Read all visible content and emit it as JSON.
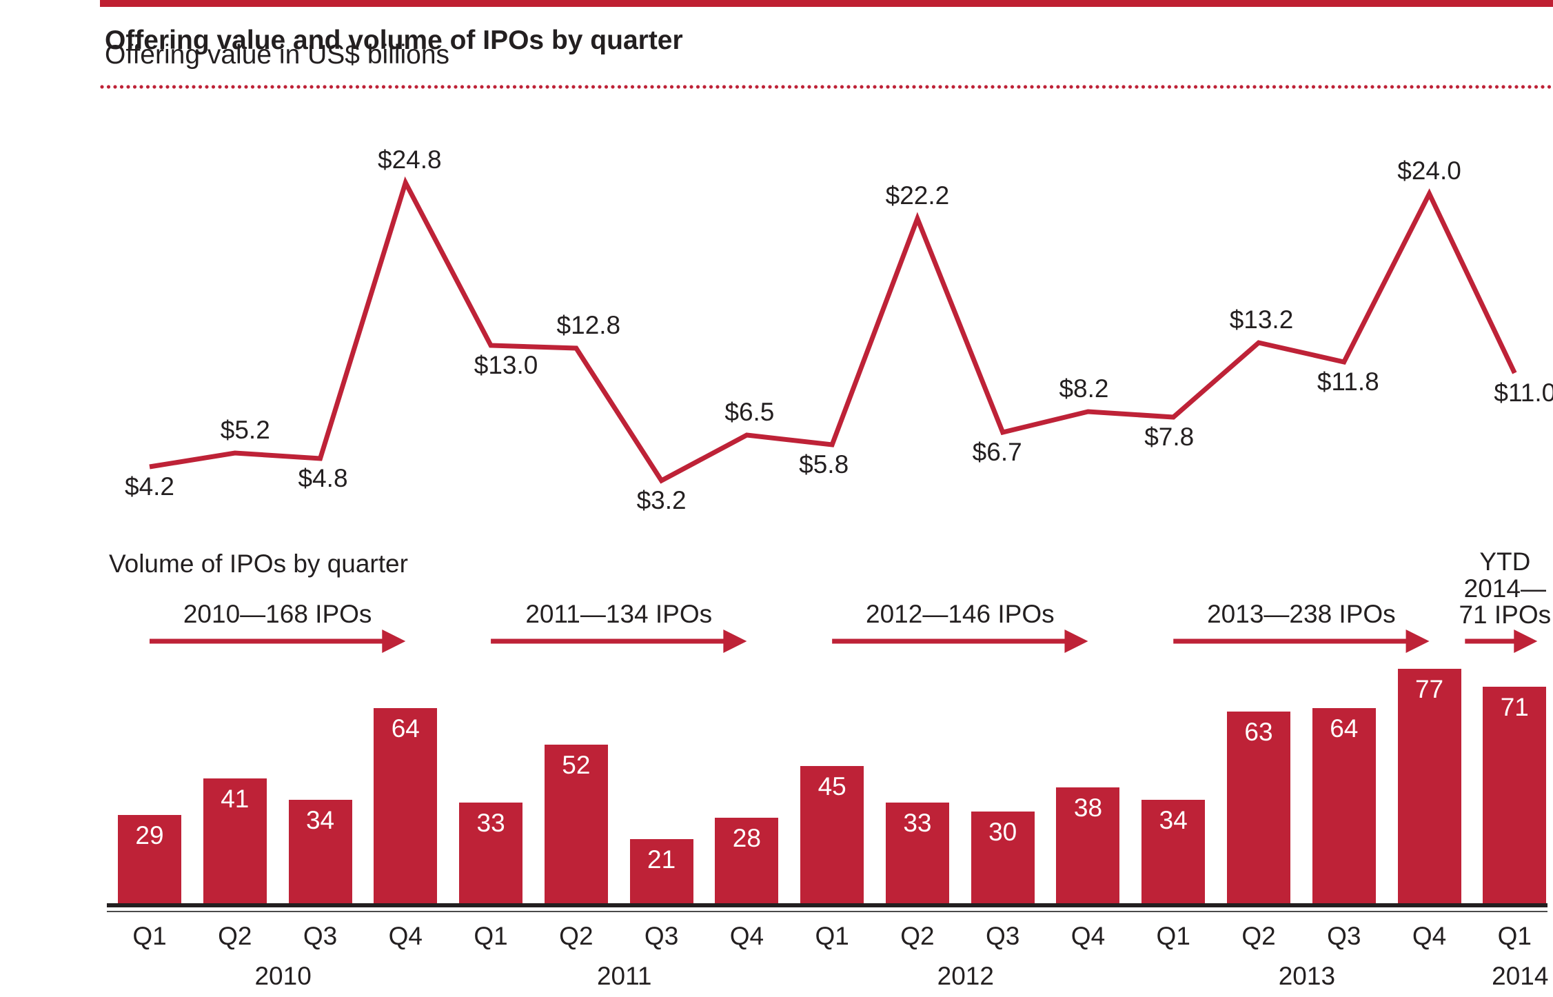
{
  "page": {
    "title": "Offering value and volume of IPOs by quarter",
    "subtitle": "Offering value in US$ billions"
  },
  "colors": {
    "accent_red": "#BE2237",
    "top_bar_red": "#BF2032",
    "text": "#231F20",
    "bar_value_text": "#FFFFFF",
    "axis": "#231F20"
  },
  "volume_section": {
    "heading": "Volume of IPOs by quarter",
    "year_arrows": [
      {
        "label": "2010—168 IPOs",
        "from_quarter": 0,
        "to_quarter": 3,
        "short": false
      },
      {
        "label": "2011—134 IPOs",
        "from_quarter": 4,
        "to_quarter": 7,
        "short": false
      },
      {
        "label": "2012—146 IPOs",
        "from_quarter": 8,
        "to_quarter": 11,
        "short": false
      },
      {
        "label": "2013—238 IPOs",
        "from_quarter": 12,
        "to_quarter": 15,
        "short": false
      },
      {
        "label_lines": [
          "YTD",
          "2014—",
          "71 IPOs"
        ],
        "from_quarter": 16,
        "to_quarter": 16,
        "short": true
      }
    ]
  },
  "chart_data": [
    {
      "type": "line",
      "title": "Offering value and volume of IPOs by quarter",
      "subtitle": "Offering value in US$ billions",
      "series_name": "Offering value (US$ billions)",
      "x": [
        "Q1 2010",
        "Q2 2010",
        "Q3 2010",
        "Q4 2010",
        "Q1 2011",
        "Q2 2011",
        "Q3 2011",
        "Q4 2011",
        "Q1 2012",
        "Q2 2012",
        "Q3 2012",
        "Q4 2012",
        "Q1 2013",
        "Q2 2013",
        "Q3 2013",
        "Q4 2013",
        "Q1 2014"
      ],
      "values": [
        4.2,
        5.2,
        4.8,
        24.8,
        13.0,
        12.8,
        3.2,
        6.5,
        5.8,
        22.2,
        6.7,
        8.2,
        7.8,
        13.2,
        11.8,
        24.0,
        11.0
      ],
      "value_prefix": "$",
      "value_decimals": 1,
      "ylim": [
        0,
        27
      ],
      "grid": false,
      "legend": false,
      "label_positions": [
        "below",
        "above",
        "below",
        "above",
        "below",
        "above",
        "below",
        "above",
        "below",
        "above",
        "below",
        "above",
        "below",
        "above",
        "below",
        "above",
        "below"
      ],
      "label_dx": [
        0,
        15,
        4,
        6,
        22,
        18,
        0,
        4,
        -12,
        0,
        -8,
        -6,
        -6,
        4,
        6,
        0,
        15
      ]
    },
    {
      "type": "bar",
      "title": "Volume of IPOs by quarter",
      "series_name": "Number of IPOs",
      "categories": [
        "Q1",
        "Q2",
        "Q3",
        "Q4",
        "Q1",
        "Q2",
        "Q3",
        "Q4",
        "Q1",
        "Q2",
        "Q3",
        "Q4",
        "Q1",
        "Q2",
        "Q3",
        "Q4",
        "Q1"
      ],
      "values": [
        29,
        41,
        34,
        64,
        33,
        52,
        21,
        28,
        45,
        33,
        30,
        38,
        34,
        63,
        64,
        77,
        71
      ],
      "year_groups": [
        {
          "year": "2010",
          "from_quarter": 0,
          "to_quarter": 3,
          "total_ipos": 168
        },
        {
          "year": "2011",
          "from_quarter": 4,
          "to_quarter": 7,
          "total_ipos": 134
        },
        {
          "year": "2012",
          "from_quarter": 8,
          "to_quarter": 11,
          "total_ipos": 146
        },
        {
          "year": "2013",
          "from_quarter": 12,
          "to_quarter": 15,
          "total_ipos": 238
        },
        {
          "year": "2014",
          "from_quarter": 16,
          "to_quarter": 16,
          "total_ipos": 71
        }
      ],
      "ylim": [
        0,
        80
      ],
      "grid": false,
      "legend": false,
      "value_labels": "inside-top"
    }
  ]
}
